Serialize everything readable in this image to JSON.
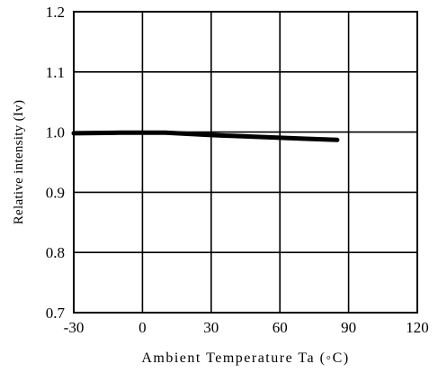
{
  "chart_data": {
    "type": "line",
    "title": "",
    "xlabel": "Ambient Temperature Ta (◦C)",
    "ylabel": "Relative intensity (Iv)",
    "xlim": [
      -30,
      120
    ],
    "ylim": [
      0.7,
      1.2
    ],
    "x_ticks": [
      -30,
      0,
      30,
      60,
      90,
      120
    ],
    "y_ticks": [
      0.7,
      0.8,
      0.9,
      1.0,
      1.1,
      1.2
    ],
    "x_tick_labels": [
      "-30",
      "0",
      "30",
      "60",
      "90",
      "120"
    ],
    "y_tick_labels": [
      "0.7",
      "0.8",
      "0.9",
      "1.0",
      "1.1",
      "1.2"
    ],
    "grid": true,
    "series": [
      {
        "x": [
          -30,
          -10,
          10,
          30,
          50,
          70,
          85
        ],
        "y": [
          0.998,
          0.999,
          0.999,
          0.995,
          0.992,
          0.989,
          0.987
        ],
        "color": "#000000"
      }
    ]
  }
}
